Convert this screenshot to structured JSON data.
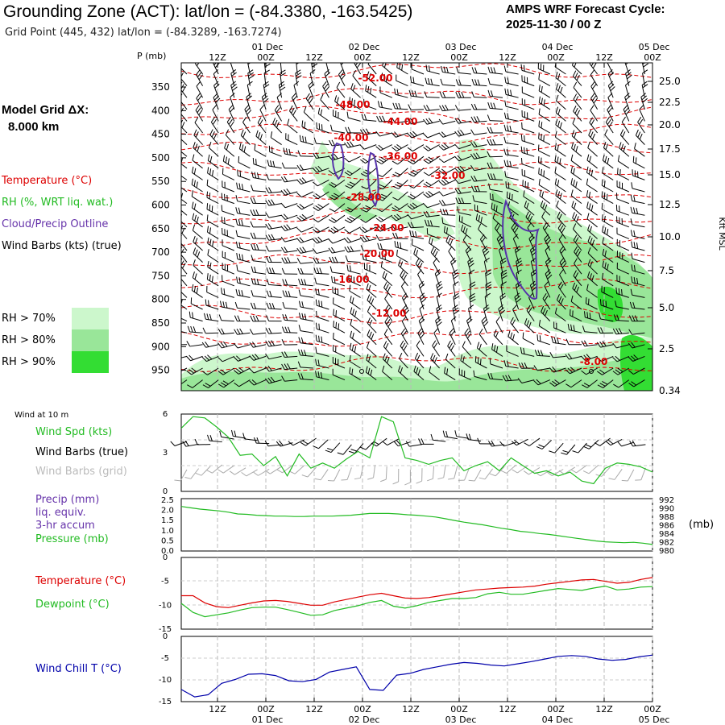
{
  "header": {
    "title": "Grounding Zone (ACT):  lat/lon = (-84.3380, -163.5425)",
    "subtitle": "Grid Point (445, 432) lat/lon = (-84.3289, -163.7274)",
    "cycle_line1": "AMPS WRF Forecast Cycle:",
    "cycle_line2": "2025-11-30 / 00  Z",
    "grid_label": "Model Grid ΔX:",
    "grid_value": "8.000 km"
  },
  "legend": {
    "temperature": "Temperature (°C)",
    "rh": "RH (%, WRT liq. wat.)",
    "cloud": "Cloud/Precip Outline",
    "wind": "Wind Barbs (kts) (true)",
    "rh70": "RH > 70%",
    "rh80": "RH > 80%",
    "rh90": "RH > 90%",
    "colors": {
      "rh70": "#ccf7cc",
      "rh80": "#99e699",
      "rh90": "#33dd33",
      "temp": "#dd0000",
      "cloud": "#5533aa"
    }
  },
  "panel_labels": {
    "wind10": "Wind at 10 m",
    "wspd": "Wind Spd (kts)",
    "wbarbs_true": "Wind Barbs (true)",
    "wbarbs_grid": "Wind Barbs (grid)",
    "precip": "Precip (mm)",
    "liq": "liq. equiv.",
    "accum": "3-hr accum",
    "pressure": "Pressure (mb)",
    "pres_unit": "(mb)",
    "temp": "Temperature (°C)",
    "dew": "Dewpoint (°C)",
    "chill": "Wind Chill T (°C)"
  },
  "chart_data": [
    {
      "id": "cross_section",
      "type": "heatmap",
      "ylabel": "P (mb)",
      "y2label": "Kft MSL",
      "pressure_ticks": [
        "350",
        "400",
        "450",
        "500",
        "550",
        "600",
        "650",
        "700",
        "750",
        "800",
        "850",
        "900",
        "950"
      ],
      "height_ticks": [
        "25.0",
        "22.5",
        "20.0",
        "17.5",
        "15.0",
        "12.5",
        "10.0",
        "7.5",
        "5.0",
        "2.5",
        "0.34"
      ],
      "time_ticks_top": [
        "12Z",
        "00Z",
        "12Z",
        "00Z",
        "12Z",
        "00Z",
        "12Z",
        "00Z",
        "12Z",
        "00Z"
      ],
      "date_ticks_top": [
        "01 Dec",
        "02 Dec",
        "03 Dec",
        "04 Dec",
        "05 Dec"
      ],
      "isotherm_labels": [
        "-52.00",
        "-48.00",
        "-44.00",
        "-40.00",
        "-36.00",
        "-32.00",
        "-28.00",
        "-24.00",
        "-20.00",
        "-16.00",
        "-12.00",
        "-8.00"
      ]
    },
    {
      "id": "wind10",
      "type": "line",
      "y_ticks": [
        "6",
        "3",
        "0"
      ],
      "ylim": [
        0,
        6
      ],
      "series": [
        {
          "name": "Wind Spd (kts)",
          "color": "#22bb22",
          "values": [
            4.9,
            5.8,
            5.7,
            5.0,
            4.2,
            2.8,
            2.9,
            2.0,
            2.7,
            1.2,
            2.9,
            1.8,
            2.2,
            1.8,
            2.5,
            3.1,
            2.6,
            5.8,
            5.4,
            2.6,
            2.4,
            2.1,
            2.4,
            2.6,
            1.6,
            2.0,
            2.3,
            1.6,
            2.6,
            2.0,
            1.4,
            1.6,
            1.2,
            1.5,
            0.8,
            0.6,
            1.8,
            2.2,
            2.1,
            1.9,
            1.5
          ]
        }
      ]
    },
    {
      "id": "precip_pressure",
      "type": "line",
      "y_ticks": [
        "2.5",
        "2.0",
        "1.5",
        "1.0",
        "0.5",
        "0.0"
      ],
      "y2_ticks": [
        "992",
        "990",
        "988",
        "986",
        "984",
        "982",
        "980"
      ],
      "ylim": [
        0,
        2.5
      ],
      "y2lim": [
        980,
        992
      ],
      "series": [
        {
          "name": "Pressure (mb)",
          "color": "#22bb22",
          "values": [
            990.2,
            989.9,
            989.6,
            989.4,
            989.2,
            988.9,
            988.5,
            988.4,
            988.2,
            988.1,
            988.0,
            988.0,
            987.9,
            987.9,
            988.0,
            988.0,
            988.0,
            988.1,
            988.2,
            988.4,
            988.6,
            988.6,
            988.6,
            988.5,
            988.3,
            988.2,
            988.0,
            987.8,
            987.4,
            987.0,
            986.6,
            986.3,
            986.0,
            985.6,
            985.2,
            984.9,
            984.5,
            984.3,
            984.0,
            983.8,
            983.5,
            983.2,
            982.9,
            982.6,
            982.3,
            982.1,
            982.0,
            981.9,
            982.0,
            981.8,
            981.5
          ]
        }
      ]
    },
    {
      "id": "temp_dew",
      "type": "line",
      "y_ticks": [
        "0",
        "-5",
        "-10",
        "-15"
      ],
      "ylim": [
        -15,
        0
      ],
      "series": [
        {
          "name": "Temperature (°C)",
          "color": "#dd0000",
          "values": [
            -8.0,
            -8.0,
            -9.5,
            -10.3,
            -10.5,
            -10.0,
            -9.5,
            -9.1,
            -9.0,
            -9.2,
            -9.6,
            -10.0,
            -10.0,
            -9.3,
            -8.8,
            -8.3,
            -7.8,
            -7.5,
            -8.0,
            -8.5,
            -8.6,
            -8.4,
            -8.0,
            -7.6,
            -7.2,
            -6.8,
            -6.6,
            -6.4,
            -6.3,
            -6.2,
            -6.0,
            -5.6,
            -5.3,
            -5.0,
            -4.7,
            -4.6,
            -5.0,
            -5.4,
            -5.2,
            -4.6,
            -4.2
          ]
        },
        {
          "name": "Dewpoint (°C)",
          "color": "#22bb22",
          "values": [
            -9.6,
            -11.5,
            -12.4,
            -12.0,
            -11.6,
            -11.0,
            -10.5,
            -10.4,
            -10.4,
            -10.9,
            -11.5,
            -12.1,
            -12.0,
            -11.1,
            -10.6,
            -10.1,
            -9.4,
            -9.0,
            -10.2,
            -10.6,
            -10.1,
            -9.4,
            -9.0,
            -8.6,
            -8.6,
            -8.4,
            -7.6,
            -7.3,
            -7.7,
            -7.7,
            -7.3,
            -6.9,
            -6.5,
            -6.7,
            -6.9,
            -6.4,
            -6.0,
            -6.8,
            -6.6,
            -6.2,
            -6.1
          ]
        }
      ]
    },
    {
      "id": "wind_chill",
      "type": "line",
      "y_ticks": [
        "0",
        "-5",
        "-10",
        "-15"
      ],
      "ylim": [
        -15,
        0
      ],
      "series": [
        {
          "name": "Wind Chill T (°C)",
          "color": "#0000aa",
          "values": [
            -12.2,
            -13.9,
            -13.4,
            -10.8,
            -9.9,
            -8.7,
            -8.6,
            -9.0,
            -10.2,
            -10.4,
            -9.9,
            -8.2,
            -7.6,
            -7.0,
            -12.2,
            -12.4,
            -8.9,
            -8.5,
            -7.6,
            -7.0,
            -6.4,
            -6.0,
            -6.2,
            -6.6,
            -6.8,
            -6.3,
            -5.8,
            -5.2,
            -4.6,
            -4.4,
            -4.6,
            -5.2,
            -5.5,
            -5.3,
            -4.7,
            -4.3
          ]
        }
      ]
    },
    {
      "id": "time_axis_bottom",
      "type": "table",
      "time_ticks": [
        "12Z",
        "00Z",
        "12Z",
        "00Z",
        "12Z",
        "00Z",
        "12Z",
        "00Z",
        "12Z",
        "00Z"
      ],
      "date_ticks": [
        "01 Dec",
        "02 Dec",
        "03 Dec",
        "04 Dec",
        "05 Dec"
      ]
    }
  ]
}
